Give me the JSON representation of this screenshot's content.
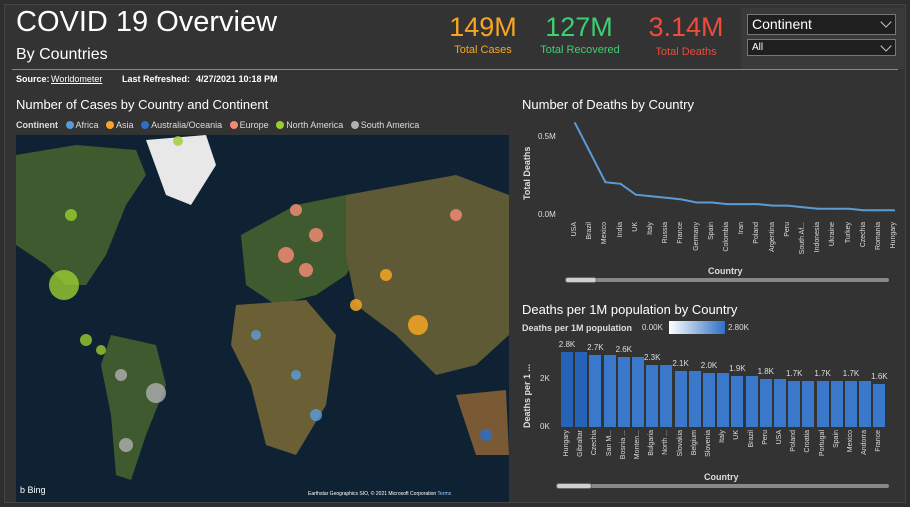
{
  "header": {
    "title": "COVID 19 Overview",
    "subtitle": "By Countries",
    "source_label": "Source:",
    "source_link": "Worldometer",
    "last_refreshed_label": "Last Refreshed:",
    "last_refreshed_value": "4/27/2021 10:18 PM"
  },
  "kpis": [
    {
      "value": "149M",
      "label": "Total Cases",
      "color": "#f5a623"
    },
    {
      "value": "127M",
      "label": "Total Recovered",
      "color": "#3ecf6f"
    },
    {
      "value": "3.14M",
      "label": "Total Deaths",
      "color": "#f04a3a"
    }
  ],
  "filters": {
    "continent_label": "Continent",
    "continent_value": "All"
  },
  "map": {
    "title": "Number of Cases by Country and Continent",
    "legend_title": "Continent",
    "legend": [
      {
        "name": "Africa",
        "color": "#5b9bd5"
      },
      {
        "name": "Asia",
        "color": "#f5a623"
      },
      {
        "name": "Australia/Oceania",
        "color": "#2f6fc4"
      },
      {
        "name": "Europe",
        "color": "#f08a72"
      },
      {
        "name": "North America",
        "color": "#9acd32"
      },
      {
        "name": "South America",
        "color": "#b0b0b0"
      }
    ],
    "bing_label": "Bing",
    "attribution": "Earthstar Geographics SIO, © 2021 Microsoft Corporation",
    "terms_label": "Terms"
  },
  "deaths_chart": {
    "title": "Number of Deaths by Country",
    "ylabel": "Total Deaths",
    "xlabel": "Country",
    "y_ticks": [
      "0.5M",
      "0.0M"
    ]
  },
  "per_million_chart": {
    "title": "Deaths per 1M population by Country",
    "legend_label": "Deaths per 1M population",
    "legend_min": "0.00K",
    "legend_max": "2.80K",
    "ylabel": "Deaths per 1 ...",
    "xlabel": "Country",
    "y_ticks": [
      "2K",
      "0K"
    ]
  },
  "chart_data": [
    {
      "type": "line",
      "title": "Number of Deaths by Country",
      "xlabel": "Country",
      "ylabel": "Total Deaths",
      "ylim": [
        0,
        0.6
      ],
      "unit": "M",
      "categories": [
        "USA",
        "Brazil",
        "Mexico",
        "India",
        "UK",
        "Italy",
        "Russia",
        "France",
        "Germany",
        "Spain",
        "Colombia",
        "Iran",
        "Poland",
        "Argentina",
        "Peru",
        "South Af...",
        "Indonesia",
        "Ukraine",
        "Turkey",
        "Czechia",
        "Romania",
        "Hungary"
      ],
      "values": [
        0.59,
        0.4,
        0.21,
        0.2,
        0.13,
        0.12,
        0.11,
        0.1,
        0.08,
        0.08,
        0.07,
        0.07,
        0.07,
        0.06,
        0.06,
        0.05,
        0.04,
        0.04,
        0.04,
        0.03,
        0.03,
        0.03
      ]
    },
    {
      "type": "bar",
      "title": "Deaths per 1M population by Country",
      "xlabel": "Country",
      "ylabel": "Deaths per 1 ...",
      "ylim": [
        0,
        3.0
      ],
      "unit": "K",
      "categories": [
        "Hungary",
        "Gibraltar",
        "Czechia",
        "San M...",
        "Bosnia ...",
        "Monten...",
        "Bulgaria",
        "North ...",
        "Slovakia",
        "Belgium",
        "Slovenia",
        "Italy",
        "UK",
        "Brazil",
        "Peru",
        "USA",
        "Poland",
        "Croatia",
        "Portugal",
        "Spain",
        "Mexico",
        "Andorra",
        "France"
      ],
      "values": [
        2.8,
        2.8,
        2.7,
        2.7,
        2.6,
        2.6,
        2.3,
        2.3,
        2.1,
        2.1,
        2.0,
        2.0,
        1.9,
        1.9,
        1.8,
        1.8,
        1.7,
        1.7,
        1.7,
        1.7,
        1.7,
        1.7,
        1.6
      ],
      "data_labels": [
        "2.8K",
        "",
        "2.7K",
        "",
        "2.6K",
        "",
        "2.3K",
        "",
        "2.1K",
        "",
        "2.0K",
        "",
        "1.9K",
        "",
        "1.8K",
        "",
        "1.7K",
        "",
        "1.7K",
        "",
        "1.7K",
        "",
        "1.6K"
      ]
    }
  ]
}
